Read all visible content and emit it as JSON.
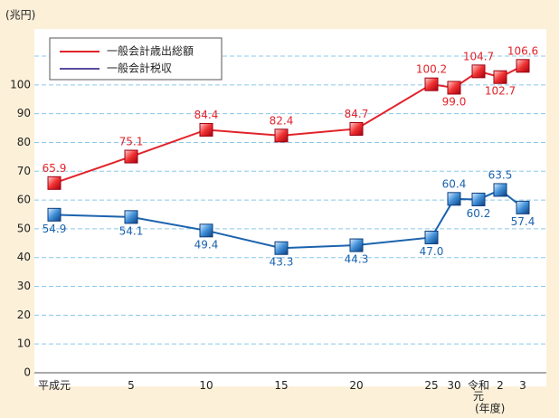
{
  "chart_data": {
    "type": "line",
    "y_unit_label": "(兆円)",
    "x_unit_label": "(年度)",
    "categories": [
      "平成元",
      "5",
      "10",
      "15",
      "20",
      "25",
      "30",
      "令和元",
      "2",
      "3"
    ],
    "series": [
      {
        "name": "一般会計歳出総額",
        "color": "#e2232b",
        "values": [
          65.9,
          75.1,
          84.4,
          82.4,
          84.7,
          100.2,
          99.0,
          104.7,
          102.7,
          106.6
        ],
        "value_labels": [
          "65.9",
          "75.1",
          "84.4",
          "82.4",
          "84.7",
          "100.2",
          "99.0",
          "104.7",
          "102.7",
          "106.6"
        ]
      },
      {
        "name": "一般会計税収",
        "color": "#1b63ad",
        "values": [
          54.9,
          54.1,
          49.4,
          43.3,
          44.3,
          47.0,
          60.4,
          60.2,
          63.5,
          57.4
        ],
        "value_labels": [
          "54.9",
          "54.1",
          "49.4",
          "43.3",
          "44.3",
          "47.0",
          "60.4",
          "60.2",
          "63.5",
          "57.4"
        ]
      }
    ],
    "ylim": [
      0,
      110
    ],
    "yticks": [
      0,
      10,
      20,
      30,
      40,
      50,
      60,
      70,
      80,
      90,
      100
    ],
    "grid": true
  }
}
